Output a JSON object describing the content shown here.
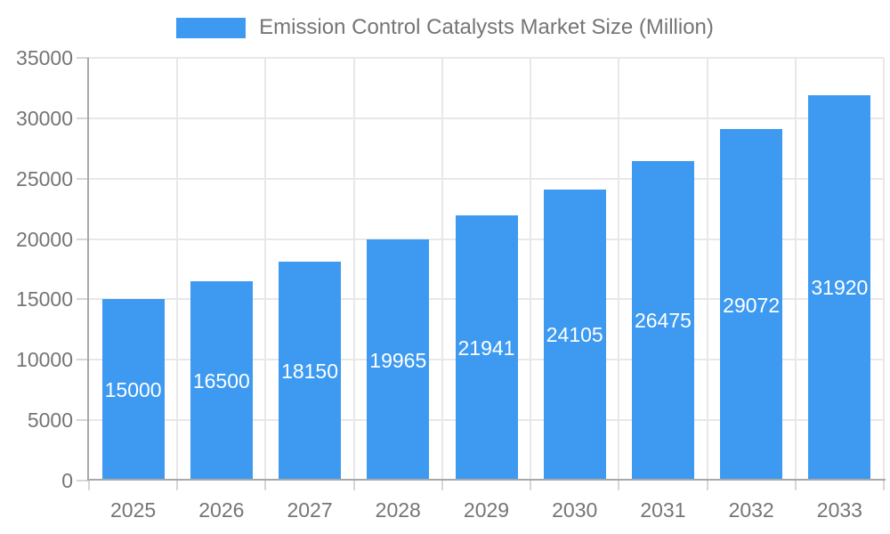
{
  "chart_data": {
    "type": "bar",
    "title": "Emission Control Catalysts Market Size (Million)",
    "categories": [
      "2025",
      "2026",
      "2027",
      "2028",
      "2029",
      "2030",
      "2031",
      "2032",
      "2033"
    ],
    "values": [
      15000,
      16500,
      18150,
      19965,
      21941,
      24105,
      26475,
      29072,
      31920
    ],
    "xlabel": "",
    "ylabel": "",
    "ylim": [
      0,
      35000
    ],
    "yticks": [
      0,
      5000,
      10000,
      15000,
      20000,
      25000,
      30000,
      35000
    ],
    "grid": true,
    "legend_position": "top",
    "bar_label_position": "inside-center",
    "colors": {
      "bar": "#3d9af0",
      "grid": "#e8e8e8",
      "axis": "#a8a8a8",
      "tick": "#d6d6d6",
      "axis_text": "#757575",
      "bar_label_text": "#ffffff",
      "background": "#ffffff"
    }
  }
}
